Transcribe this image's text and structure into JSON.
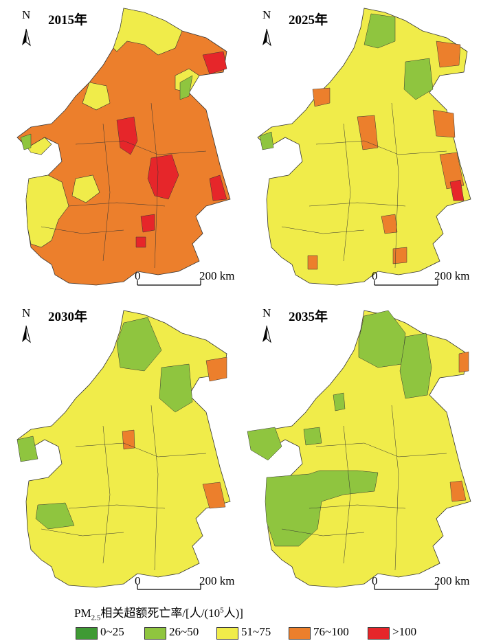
{
  "legend": {
    "title_prefix": "PM",
    "title_sub": "2.5",
    "title_mid": "相关超额死亡率/[人/(10",
    "title_sup": "5",
    "title_suffix": "人)]",
    "classes": [
      {
        "label": "0~25",
        "color": "#3f9a34"
      },
      {
        "label": "26~50",
        "color": "#8fc53f"
      },
      {
        "label": "51~75",
        "color": "#f0ec4a"
      },
      {
        "label": "76~100",
        "color": "#ec7f2c"
      },
      {
        "label": ">100",
        "color": "#e6262a"
      }
    ]
  },
  "panels": [
    {
      "year": "2015年",
      "north": "N",
      "scale_zero": "0",
      "scale_label": "200 km",
      "base": "#ec7f2c"
    },
    {
      "year": "2025年",
      "north": "N",
      "scale_zero": "0",
      "scale_label": "200 km",
      "base": "#f0ec4a"
    },
    {
      "year": "2030年",
      "north": "N",
      "scale_zero": "0",
      "scale_label": "200 km",
      "base": "#f0ec4a"
    },
    {
      "year": "2035年",
      "north": "N",
      "scale_zero": "0",
      "scale_label": "200 km",
      "base": "#f0ec4a"
    }
  ]
}
